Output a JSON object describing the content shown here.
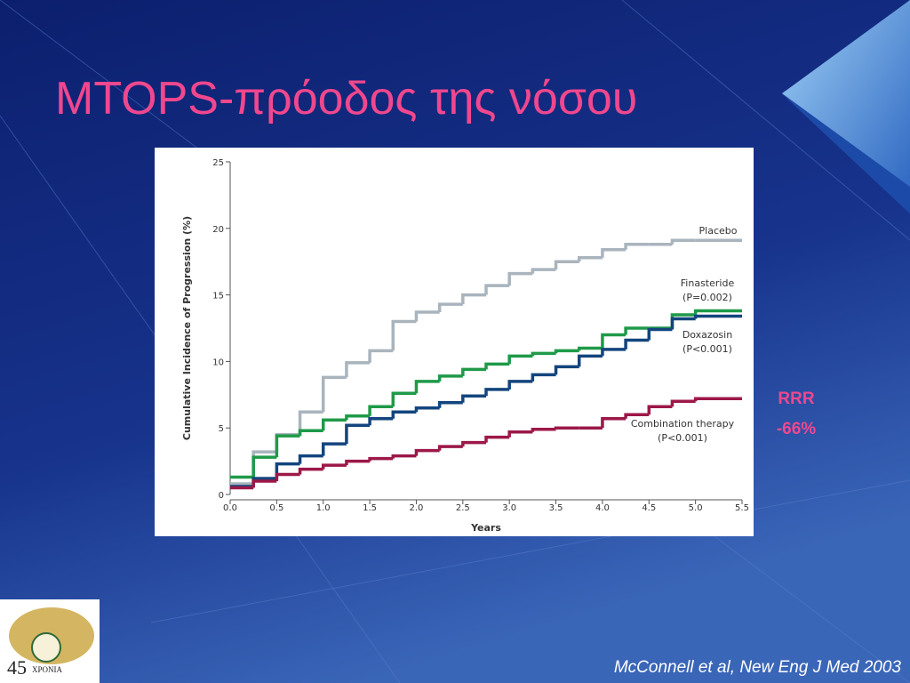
{
  "slide_title": "MTOPS-πρόοδος της νόσου",
  "annotation": {
    "line1": "RRR",
    "line2": "-66%"
  },
  "citation": "McConnell et al, New Eng J Med 2003",
  "logo": {
    "number": "45",
    "word": "ΧΡΟΝΙΑ"
  },
  "chart_data": {
    "type": "step",
    "x_label": "Years",
    "y_label": "Cumulative Incidence of Progression (%)",
    "x": [
      0,
      0.25,
      0.5,
      0.75,
      1.0,
      1.25,
      1.5,
      1.75,
      2.0,
      2.25,
      2.5,
      2.75,
      3.0,
      3.25,
      3.5,
      3.75,
      4.0,
      4.25,
      4.5,
      4.75,
      5.0,
      5.5
    ],
    "series": [
      {
        "name": "Placebo",
        "color": "#a9b4bd",
        "values": [
          0.8,
          3.2,
          4.5,
          6.2,
          8.8,
          9.9,
          10.8,
          13.0,
          13.7,
          14.3,
          15.0,
          15.7,
          16.6,
          16.9,
          17.5,
          17.8,
          18.4,
          18.8,
          18.8,
          19.1,
          19.1,
          19.1
        ]
      },
      {
        "name": "Finasteride",
        "p_value": "(P=0.002)",
        "color": "#1e9a48",
        "values": [
          1.3,
          2.8,
          4.4,
          4.8,
          5.6,
          5.9,
          6.6,
          7.6,
          8.5,
          8.9,
          9.4,
          9.8,
          10.4,
          10.6,
          10.8,
          11.0,
          12.0,
          12.5,
          12.5,
          13.5,
          13.8,
          13.8
        ]
      },
      {
        "name": "Doxazosin",
        "p_value": "(P<0.001)",
        "color": "#13457e",
        "values": [
          0.6,
          1.2,
          2.3,
          2.9,
          3.8,
          5.2,
          5.7,
          6.2,
          6.5,
          6.9,
          7.4,
          7.9,
          8.5,
          9.0,
          9.6,
          10.4,
          10.9,
          11.6,
          12.4,
          13.2,
          13.4,
          13.4
        ]
      },
      {
        "name": "Combination therapy",
        "p_value": "(P<0.001)",
        "color": "#9c1848",
        "values": [
          0.5,
          1.0,
          1.5,
          1.9,
          2.2,
          2.5,
          2.7,
          2.9,
          3.3,
          3.6,
          3.9,
          4.3,
          4.7,
          4.9,
          5.0,
          5.0,
          5.7,
          6.0,
          6.6,
          7.0,
          7.2,
          7.2
        ]
      }
    ],
    "xlim": [
      0,
      5.5
    ],
    "xticks": [
      {
        "value": 0,
        "label": "0.0"
      },
      0.5,
      {
        "value": 1,
        "label": "1.0"
      },
      1.5,
      {
        "value": 2,
        "label": "2.0"
      },
      2.5,
      {
        "value": 3,
        "label": "3.0"
      },
      3.5,
      {
        "value": 4,
        "label": "4.0"
      },
      4.5,
      {
        "value": 5,
        "label": "5.0"
      },
      5.5
    ],
    "ylim": [
      0,
      25
    ],
    "yticks": [
      0,
      5,
      10,
      15,
      20,
      25
    ],
    "grid": false
  }
}
